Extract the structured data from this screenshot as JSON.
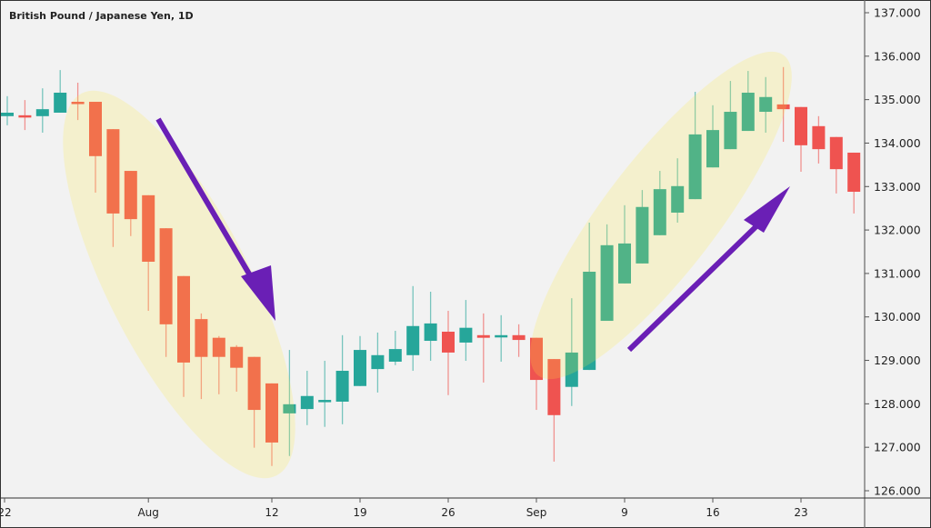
{
  "chart_data": {
    "type": "candlestick",
    "title": "British Pound / Japanese Yen, 1D",
    "ylim": [
      126.0,
      137.0
    ],
    "yticks": [
      "137.000",
      "136.000",
      "135.000",
      "134.000",
      "133.000",
      "132.000",
      "131.000",
      "130.000",
      "129.000",
      "128.000",
      "127.000",
      "126.000"
    ],
    "ytick_values": [
      137,
      136,
      135,
      134,
      133,
      132,
      131,
      130,
      129,
      128,
      127,
      126
    ],
    "xticks": [
      {
        "label": "22",
        "bar": 0
      },
      {
        "label": "Aug",
        "bar": 8
      },
      {
        "label": "12",
        "bar": 15
      },
      {
        "label": "19",
        "bar": 20
      },
      {
        "label": "26",
        "bar": 25
      },
      {
        "label": "Sep",
        "bar": 30
      },
      {
        "label": "9",
        "bar": 35
      },
      {
        "label": "16",
        "bar": 40
      },
      {
        "label": "23",
        "bar": 45
      }
    ],
    "colors": {
      "up": "#26a69a",
      "down": "#ef5350",
      "highlight": "#ffeb3b",
      "arrow": "#6a1fb5",
      "background": "#f2f2f2"
    },
    "ohlc": [
      [
        134.62,
        135.08,
        134.41,
        134.7
      ],
      [
        134.64,
        134.99,
        134.3,
        134.62
      ],
      [
        134.62,
        135.26,
        134.24,
        134.78
      ],
      [
        134.7,
        135.68,
        134.7,
        135.16
      ],
      [
        134.95,
        135.39,
        134.53,
        134.93
      ],
      [
        134.95,
        134.95,
        132.86,
        133.7
      ],
      [
        134.32,
        134.32,
        131.61,
        132.38
      ],
      [
        133.36,
        133.36,
        131.86,
        132.25
      ],
      [
        132.8,
        132.8,
        130.14,
        131.27
      ],
      [
        132.04,
        132.04,
        129.08,
        129.83
      ],
      [
        130.94,
        130.94,
        128.16,
        128.95
      ],
      [
        129.95,
        130.08,
        128.11,
        129.08
      ],
      [
        129.52,
        129.56,
        128.22,
        129.08
      ],
      [
        129.31,
        129.35,
        128.28,
        128.83
      ],
      [
        129.08,
        129.08,
        126.99,
        127.86
      ],
      [
        128.47,
        128.47,
        126.57,
        127.11
      ],
      [
        127.78,
        129.24,
        126.8,
        127.99
      ],
      [
        127.88,
        128.76,
        127.51,
        128.18
      ],
      [
        128.05,
        128.99,
        127.47,
        128.09
      ],
      [
        128.05,
        129.58,
        127.53,
        128.76
      ],
      [
        128.41,
        129.56,
        128.41,
        129.24
      ],
      [
        128.8,
        129.64,
        128.26,
        129.12
      ],
      [
        128.97,
        129.68,
        128.89,
        129.26
      ],
      [
        129.12,
        130.71,
        128.76,
        129.79
      ],
      [
        129.45,
        130.58,
        128.99,
        129.85
      ],
      [
        129.66,
        130.14,
        128.2,
        129.18
      ],
      [
        129.41,
        130.39,
        128.99,
        129.75
      ],
      [
        129.58,
        130.08,
        128.49,
        129.52
      ],
      [
        129.56,
        130.04,
        128.97,
        129.58
      ],
      [
        129.58,
        129.83,
        129.08,
        129.47
      ],
      [
        129.52,
        129.52,
        127.86,
        128.55
      ],
      [
        129.03,
        129.03,
        126.67,
        127.74
      ],
      [
        128.39,
        130.43,
        127.95,
        129.18
      ],
      [
        128.78,
        132.17,
        128.78,
        131.04
      ],
      [
        129.91,
        132.13,
        129.91,
        131.65
      ],
      [
        130.77,
        132.57,
        130.77,
        131.69
      ],
      [
        131.23,
        132.92,
        131.23,
        132.53
      ],
      [
        131.88,
        133.36,
        131.88,
        132.94
      ],
      [
        132.4,
        133.65,
        132.17,
        133.01
      ],
      [
        132.71,
        135.18,
        132.71,
        134.2
      ],
      [
        133.44,
        134.87,
        133.44,
        134.3
      ],
      [
        133.86,
        135.43,
        133.86,
        134.72
      ],
      [
        134.28,
        135.66,
        134.28,
        135.16
      ],
      [
        134.72,
        135.52,
        134.24,
        135.06
      ],
      [
        134.89,
        135.75,
        134.03,
        134.78
      ],
      [
        134.83,
        134.83,
        133.34,
        133.95
      ],
      [
        134.39,
        134.62,
        133.53,
        133.86
      ],
      [
        134.14,
        134.14,
        132.84,
        133.4
      ],
      [
        133.78,
        133.78,
        132.38,
        132.88
      ]
    ],
    "annotations": [
      {
        "type": "highlight-ellipse",
        "from_bar": 5,
        "to_bar": 15,
        "trend": "down"
      },
      {
        "type": "arrow",
        "direction": "down"
      },
      {
        "type": "highlight-ellipse",
        "from_bar": 31,
        "to_bar": 44,
        "trend": "up"
      },
      {
        "type": "arrow",
        "direction": "up"
      }
    ]
  }
}
